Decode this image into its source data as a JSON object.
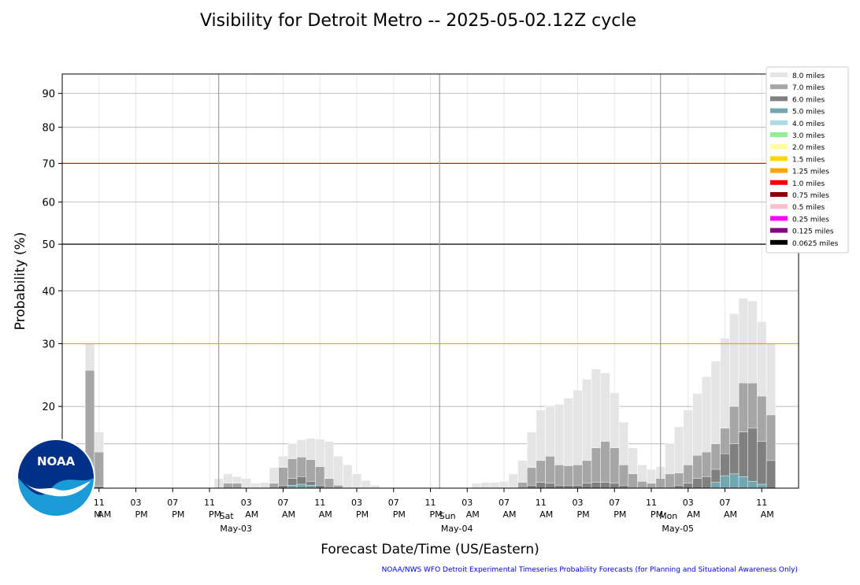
{
  "chart_data": {
    "type": "bar",
    "title": "Visibility for Detroit Metro -- 2025-05-02.12Z cycle",
    "xlabel": "Forecast Date/Time (US/Eastern)",
    "ylabel": "Probability (%)",
    "footnote": "NOAA/NWS WFO Detroit Experimental Timeseries Probability Forecasts (for Planning and Situational Awareness Only)",
    "logo_text": "NOAA",
    "x_axis": {
      "start": "2025-05-02 07:00",
      "end": "2025-05-05 12:00",
      "bin_hours": 1
    },
    "yticks": [
      20,
      30,
      40,
      50,
      60,
      70,
      80,
      90
    ],
    "y_axis_bottom": 10,
    "y_axis_top": 96,
    "threshold_lines": [
      {
        "value": 30,
        "color": "#ffa500"
      },
      {
        "value": 50,
        "color": "#000000"
      },
      {
        "value": 70,
        "color": "#cc0000"
      }
    ],
    "xtick_labels": [
      {
        "hour": 11,
        "day": 2,
        "time": "11",
        "ampm": "AM"
      },
      {
        "hour": 15,
        "day": 2,
        "time": "03",
        "ampm": "PM"
      },
      {
        "hour": 19,
        "day": 2,
        "time": "07",
        "ampm": "PM"
      },
      {
        "hour": 23,
        "day": 2,
        "time": "11",
        "ampm": "PM"
      },
      {
        "hour": 3,
        "day": 3,
        "time": "03",
        "ampm": "AM"
      },
      {
        "hour": 7,
        "day": 3,
        "time": "07",
        "ampm": "AM"
      },
      {
        "hour": 11,
        "day": 3,
        "time": "11",
        "ampm": "AM"
      },
      {
        "hour": 15,
        "day": 3,
        "time": "03",
        "ampm": "PM"
      },
      {
        "hour": 19,
        "day": 3,
        "time": "07",
        "ampm": "PM"
      },
      {
        "hour": 23,
        "day": 3,
        "time": "11",
        "ampm": "PM"
      },
      {
        "hour": 3,
        "day": 4,
        "time": "03",
        "ampm": "AM"
      },
      {
        "hour": 7,
        "day": 4,
        "time": "07",
        "ampm": "AM"
      },
      {
        "hour": 11,
        "day": 4,
        "time": "11",
        "ampm": "AM"
      },
      {
        "hour": 15,
        "day": 4,
        "time": "03",
        "ampm": "PM"
      },
      {
        "hour": 19,
        "day": 4,
        "time": "07",
        "ampm": "PM"
      },
      {
        "hour": 23,
        "day": 4,
        "time": "11",
        "ampm": "PM"
      },
      {
        "hour": 3,
        "day": 5,
        "time": "03",
        "ampm": "AM"
      },
      {
        "hour": 7,
        "day": 5,
        "time": "07",
        "ampm": "AM"
      },
      {
        "hour": 11,
        "day": 5,
        "time": "11",
        "ampm": "AM"
      }
    ],
    "first_partial_label": "M",
    "day_separators": [
      {
        "day": 3,
        "weekday": "Sat",
        "date": "May-03"
      },
      {
        "day": 4,
        "weekday": "Sun",
        "date": "May-04"
      },
      {
        "day": 5,
        "weekday": "Mon",
        "date": "May-05"
      }
    ],
    "legend": {
      "placement": "outside top-right",
      "entries": [
        {
          "label": "8.0 miles",
          "color": "#e5e5e5"
        },
        {
          "label": "7.0 miles",
          "color": "#a6a6a6"
        },
        {
          "label": "6.0 miles",
          "color": "#808080"
        },
        {
          "label": "5.0 miles",
          "color": "#6fa8b0"
        },
        {
          "label": "4.0 miles",
          "color": "#add8e6"
        },
        {
          "label": "3.0 miles",
          "color": "#90ee90"
        },
        {
          "label": "2.0 miles",
          "color": "#ffff99"
        },
        {
          "label": "1.5 miles",
          "color": "#ffd700"
        },
        {
          "label": "1.25 miles",
          "color": "#ffa500"
        },
        {
          "label": "1.0 miles",
          "color": "#ff0000"
        },
        {
          "label": "0.75 miles",
          "color": "#8b0000"
        },
        {
          "label": "0.5 miles",
          "color": "#ffc0cb"
        },
        {
          "label": "0.25 miles",
          "color": "#ff00ff"
        },
        {
          "label": "0.125 miles",
          "color": "#800080"
        },
        {
          "label": "0.0625 miles",
          "color": "#000000"
        }
      ]
    },
    "series": [
      {
        "name": "8.0 miles",
        "start_hour_index": 3,
        "values": [
          30,
          16.5,
          0,
          0,
          0,
          0,
          0,
          0,
          0,
          0,
          0,
          0,
          0,
          0,
          11,
          11.5,
          11.2,
          11,
          10.5,
          10.6,
          12.2,
          13.5,
          15,
          15.5,
          15.7,
          15.6,
          15.3,
          13.5,
          12.5,
          11.5,
          10.8,
          10.3,
          0,
          0,
          0,
          0,
          0,
          0,
          0,
          0,
          0,
          0,
          10.5,
          10.6,
          10.6,
          10.7,
          11.5,
          13,
          16.5,
          19.5,
          20,
          20.3,
          21.2,
          22.4,
          24.1,
          25.7,
          25.1,
          22,
          17.8,
          14.5,
          12.5,
          12,
          12.3,
          15,
          17.2,
          19.5,
          21.9,
          24.5,
          27,
          31,
          35.5,
          38.5,
          38,
          34,
          30
        ]
      },
      {
        "name": "7.0 miles",
        "start_hour_index": 3,
        "values": [
          25.5,
          14,
          0,
          0,
          0,
          0,
          0,
          0,
          0,
          0,
          0,
          0,
          0,
          0,
          0,
          10.5,
          10.5,
          0,
          0,
          0,
          10.5,
          12.2,
          13.2,
          13.4,
          13.1,
          12.3,
          11,
          10.3,
          0,
          0,
          0,
          0,
          0,
          0,
          0,
          0,
          0,
          0,
          0,
          0,
          0,
          0,
          0,
          0,
          0,
          0,
          0,
          10.6,
          12.2,
          13,
          13.5,
          12.5,
          12.4,
          12.5,
          13,
          14.5,
          15.3,
          14.5,
          12.5,
          11.5,
          10.7,
          10.5,
          11,
          11.5,
          11.6,
          12.5,
          13.6,
          14,
          15,
          17,
          20,
          23.5,
          23.5,
          21.5,
          18.8
        ]
      },
      {
        "name": "6.0 miles",
        "start_hour_index": 3,
        "values": [
          10.4,
          10.2,
          0,
          0,
          0,
          0,
          0,
          0,
          0,
          0,
          0,
          0,
          0,
          0,
          0,
          0,
          0,
          0,
          0,
          0,
          0,
          10.3,
          11,
          11.2,
          10.7,
          10.3,
          0,
          0,
          0,
          0,
          0,
          0,
          0,
          0,
          0,
          0,
          0,
          0,
          0,
          0,
          0,
          0,
          0,
          0,
          0,
          0,
          0,
          0,
          10.3,
          10.6,
          10.5,
          10.3,
          10.3,
          10.3,
          10.5,
          10.6,
          10.6,
          10.5,
          10.3,
          0,
          0,
          0,
          0,
          0,
          10.3,
          10.5,
          11,
          11.2,
          12,
          13.8,
          15,
          16.5,
          17,
          15.3,
          13
        ]
      },
      {
        "name": "5.0 miles",
        "start_hour_index": 3,
        "values": [
          0,
          0,
          0,
          0,
          0,
          0,
          0,
          0,
          0,
          0,
          0,
          0,
          0,
          0,
          0,
          0,
          0,
          0,
          0,
          0,
          0,
          0,
          10.3,
          10.4,
          10.3,
          0,
          0,
          0,
          0,
          0,
          0,
          0,
          0,
          0,
          0,
          0,
          0,
          0,
          0,
          0,
          0,
          0,
          0,
          0,
          0,
          0,
          0,
          0,
          0,
          0,
          0,
          0,
          0,
          0,
          0,
          0,
          0,
          0,
          0,
          0,
          0,
          0,
          0,
          0,
          0,
          0,
          0,
          0,
          10.6,
          11.3,
          11.5,
          11.2,
          10.7,
          10.4
        ]
      }
    ]
  }
}
